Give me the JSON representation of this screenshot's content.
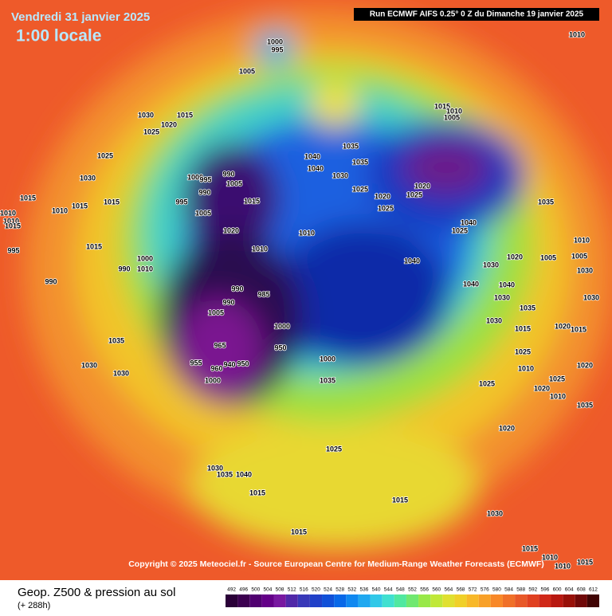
{
  "header": {
    "title": "Vendredi 31 janvier 2025",
    "subtitle": "1:00 locale",
    "run": "Run ECMWF AIFS 0.25° 0 Z du Dimanche 19 janvier 2025"
  },
  "copyright": "Copyright © 2025 Meteociel.fr - Source European Centre for Medium-Range Weather Forecasts (ECMWF)",
  "footer": {
    "label": "Geop. Z500 & pression au sol",
    "lead": "(+ 288h)"
  },
  "legend": {
    "scale": [
      492,
      496,
      500,
      504,
      508,
      512,
      516,
      520,
      524,
      528,
      532,
      536,
      540,
      544,
      548,
      552,
      556,
      560,
      564,
      568,
      572,
      576,
      580,
      584,
      588,
      592,
      596,
      600,
      604,
      608,
      612
    ]
  },
  "pressure_labels": [
    "1000",
    "995",
    "1005",
    "1010",
    "1030",
    "1015",
    "1020",
    "1025",
    "1015",
    "1010",
    "1005",
    "1025",
    "990",
    "1005",
    "1000",
    "995",
    "990",
    "995",
    "1005",
    "1015",
    "1040",
    "1040",
    "1035",
    "1030",
    "1035",
    "1025",
    "1020",
    "1025",
    "1025",
    "1020",
    "1030",
    "1015",
    "1015",
    "1015",
    "1010",
    "1010",
    "1010",
    "1015",
    "1020",
    "1010",
    "1010",
    "1015",
    "995",
    "1000",
    "990",
    "1010",
    "990",
    "990",
    "990",
    "985",
    "1005",
    "1000",
    "950",
    "965",
    "955",
    "960",
    "940",
    "950",
    "1000",
    "1000",
    "1035",
    "1035",
    "1030",
    "1030",
    "1035",
    "1040",
    "1025",
    "1040",
    "1030",
    "1020",
    "1005",
    "1010",
    "1005",
    "1030",
    "1040",
    "1040",
    "1030",
    "1035",
    "1030",
    "1015",
    "1020",
    "1015",
    "1030",
    "1025",
    "1010",
    "1020",
    "1025",
    "1020",
    "1010",
    "1035",
    "1025",
    "1020",
    "1025",
    "1030",
    "1035",
    "1040",
    "1015",
    "1015",
    "1030",
    "1015",
    "1015",
    "1010",
    "1010",
    "1015"
  ]
}
